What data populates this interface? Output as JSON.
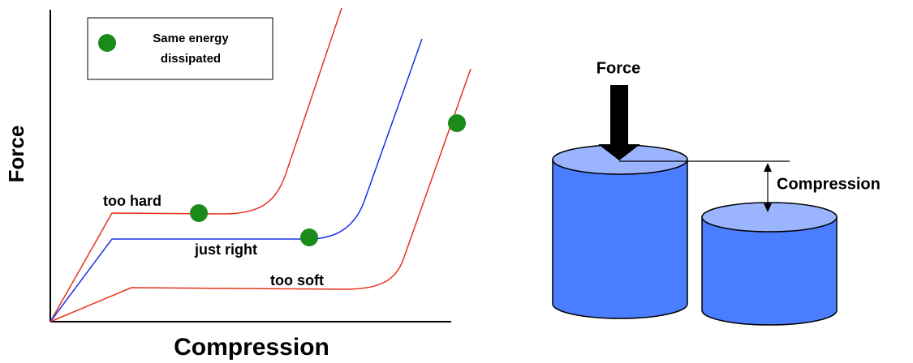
{
  "graph": {
    "y_axis_label": "Force",
    "x_axis_label": "Compression",
    "legend": {
      "lines": [
        "Same energy",
        "dissipated"
      ]
    },
    "curve_labels": [
      "too hard",
      "just right",
      "too soft"
    ]
  },
  "illustration": {
    "force_label": "Force",
    "compression_label": "Compression"
  }
}
